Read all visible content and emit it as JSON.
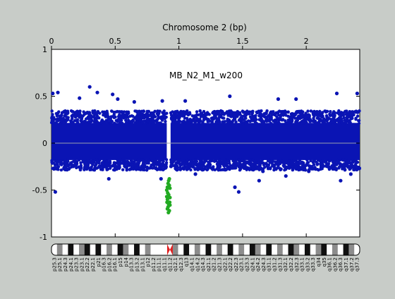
{
  "chart_data": {
    "type": "scatter",
    "title": "Chromosome 2 (bp)",
    "annotation": "MB_N2_M1_w200",
    "xlabel": "Chromosome 2 (bp)",
    "ylabel": "",
    "xlim": [
      0,
      2.42
    ],
    "ylim": [
      -1,
      1
    ],
    "x_ticks": [
      0,
      0.5,
      1,
      1.5,
      2
    ],
    "x_tick_labels": [
      "0",
      "0.5",
      "1",
      "1.5",
      "2"
    ],
    "y_ticks": [
      1,
      0.5,
      0,
      -0.5,
      -1
    ],
    "y_tick_labels": [
      "1",
      "0.5",
      "0",
      "-0.5",
      "-1"
    ],
    "grid": false,
    "baseline": 0,
    "series": [
      {
        "color": "#0a14b4",
        "segments": [
          {
            "x_start": 0.0,
            "x_end": 0.905,
            "y_low": -0.25,
            "y_high": 0.3
          },
          {
            "x_start": 0.935,
            "x_end": 2.42,
            "y_low": -0.25,
            "y_high": 0.3
          }
        ],
        "outliers": [
          {
            "x": 0.03,
            "y": -0.52
          },
          {
            "x": 0.05,
            "y": 0.54
          },
          {
            "x": 0.01,
            "y": 0.53
          },
          {
            "x": 0.3,
            "y": 0.6
          },
          {
            "x": 0.36,
            "y": 0.54
          },
          {
            "x": 0.45,
            "y": -0.38
          },
          {
            "x": 0.48,
            "y": 0.52
          },
          {
            "x": 0.52,
            "y": 0.47
          },
          {
            "x": 0.86,
            "y": -0.38
          },
          {
            "x": 0.87,
            "y": 0.45
          },
          {
            "x": 1.05,
            "y": 0.45
          },
          {
            "x": 1.13,
            "y": -0.33
          },
          {
            "x": 1.4,
            "y": 0.5
          },
          {
            "x": 1.44,
            "y": -0.47
          },
          {
            "x": 1.47,
            "y": -0.52
          },
          {
            "x": 1.63,
            "y": -0.4
          },
          {
            "x": 1.66,
            "y": -0.3
          },
          {
            "x": 1.78,
            "y": 0.47
          },
          {
            "x": 1.84,
            "y": -0.35
          },
          {
            "x": 2.02,
            "y": -0.3
          },
          {
            "x": 2.24,
            "y": 0.53
          },
          {
            "x": 2.27,
            "y": -0.4
          },
          {
            "x": 2.4,
            "y": 0.53
          },
          {
            "x": 2.35,
            "y": -0.33
          },
          {
            "x": 0.22,
            "y": 0.48
          },
          {
            "x": 0.65,
            "y": 0.44
          },
          {
            "x": 1.92,
            "y": 0.47
          }
        ]
      },
      {
        "color": "#22aa22",
        "points": [
          {
            "x": 0.905,
            "y": -0.5
          },
          {
            "x": 0.91,
            "y": -0.6
          },
          {
            "x": 0.91,
            "y": -0.7
          },
          {
            "x": 0.915,
            "y": -0.43
          },
          {
            "x": 0.92,
            "y": -0.55
          },
          {
            "x": 0.92,
            "y": -0.65
          },
          {
            "x": 0.925,
            "y": -0.72
          },
          {
            "x": 0.925,
            "y": -0.38
          },
          {
            "x": 0.93,
            "y": -0.48
          },
          {
            "x": 0.93,
            "y": -0.58
          },
          {
            "x": 0.915,
            "y": -0.68
          },
          {
            "x": 0.91,
            "y": -0.47
          },
          {
            "x": 0.92,
            "y": -0.4
          },
          {
            "x": 0.928,
            "y": -0.63
          },
          {
            "x": 0.905,
            "y": -0.57
          },
          {
            "x": 0.918,
            "y": -0.74
          },
          {
            "x": 0.93,
            "y": -0.66
          },
          {
            "x": 0.912,
            "y": -0.53
          },
          {
            "x": 0.925,
            "y": -0.45
          },
          {
            "x": 0.907,
            "y": -0.63
          }
        ]
      }
    ],
    "ideogram": {
      "centromere_x": 0.93,
      "bands": [
        "p25.3",
        "p25.1",
        "p24.3",
        "p24.1",
        "p23.3",
        "p23.1",
        "p22.2",
        "p22.1",
        "p21",
        "p16.3",
        "p16.2",
        "p16.1",
        "p15",
        "p14",
        "p13.3",
        "p13.2",
        "p13.1",
        "p12",
        "p11.2",
        "p11.1",
        "q11.1",
        "q11.2",
        "q12.1",
        "q12.3",
        "q13",
        "q14.1",
        "q14.2",
        "q14.3",
        "q21.1",
        "q21.2",
        "q21.3",
        "q22.1",
        "q22.2",
        "q22.3",
        "q23.1",
        "q23.3",
        "q24.1",
        "q24.2",
        "q24.3",
        "q31.1",
        "q31.2",
        "q31.3",
        "q32.1",
        "q32.2",
        "q32.3",
        "q33.1",
        "q33.2",
        "q33.3",
        "q34",
        "q35",
        "q36.1",
        "q36.2",
        "q36.3",
        "q37.1",
        "q37.2",
        "q37.3"
      ],
      "stain": [
        "w",
        "g",
        "w",
        "d",
        "w",
        "g",
        "d",
        "w",
        "d",
        "w",
        "g",
        "w",
        "d",
        "g",
        "w",
        "d",
        "w",
        "g",
        "w",
        "c",
        "c",
        "w",
        "g",
        "w",
        "d",
        "w",
        "g",
        "w",
        "d",
        "w",
        "g",
        "w",
        "d",
        "w",
        "g",
        "w",
        "d",
        "g",
        "w",
        "d",
        "w",
        "g",
        "w",
        "d",
        "g",
        "w",
        "d",
        "w",
        "g",
        "d",
        "w",
        "g",
        "w",
        "d",
        "g",
        "w"
      ]
    }
  }
}
